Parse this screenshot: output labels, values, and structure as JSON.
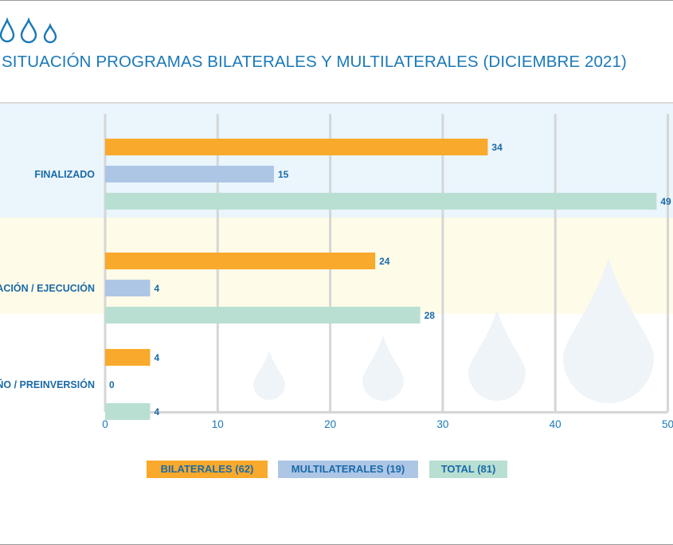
{
  "title": "SITUACIÓN PROGRAMAS BILATERALES Y MULTILATERALES (DICIEMBRE 2021)",
  "colors": {
    "bilaterales": "#f9a92b",
    "multilaterales": "#aec6e6",
    "total": "#b9dfd2",
    "band_finalizado": "#eaf5fc",
    "band_ejecucion": "#fefbe8",
    "band_diseno": "#ffffff",
    "grid": "#d6d6d6",
    "text": "#1a6aa8",
    "drop": "#eef4f8"
  },
  "chart_data": {
    "type": "bar",
    "orientation": "horizontal",
    "title": "SITUACIÓN PROGRAMAS BILATERALES Y MULTILATERALES (DICIEMBRE 2021)",
    "categories": [
      "FINALIZADO",
      "ACTUACIÓN / EJECUCIÓN",
      "DISEÑO / PREINVERSIÓN"
    ],
    "series": [
      {
        "name": "BILATERALES (62)",
        "values": [
          34,
          24,
          4
        ]
      },
      {
        "name": "MULTILATERALES (19)",
        "values": [
          15,
          4,
          0
        ]
      },
      {
        "name": "TOTAL (81)",
        "values": [
          49,
          28,
          4
        ]
      }
    ],
    "xlim": [
      0,
      50
    ],
    "xticks": [
      0,
      10,
      20,
      30,
      40,
      50
    ],
    "grid": true,
    "legend_position": "bottom"
  }
}
